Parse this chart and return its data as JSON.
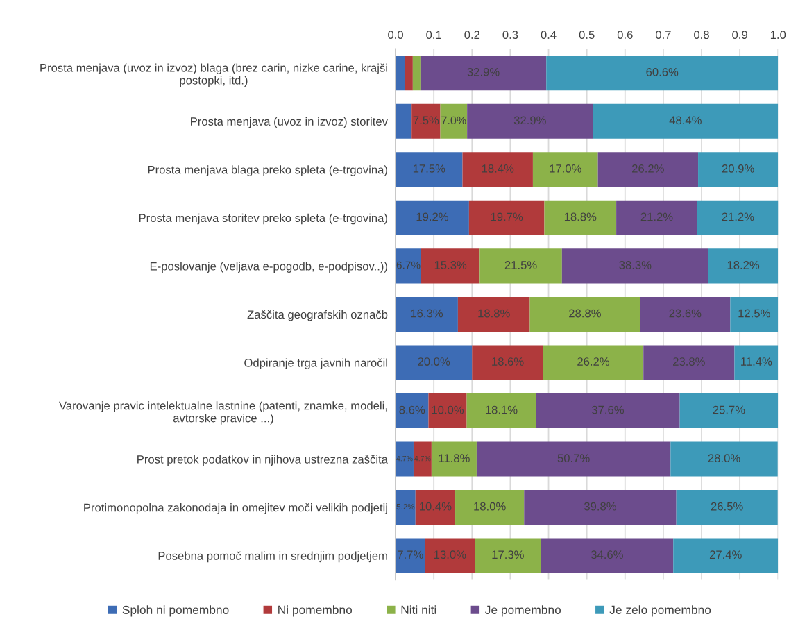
{
  "chart_data": {
    "type": "bar",
    "orientation": "horizontal",
    "stacked": true,
    "categories": [
      "Prosta menjava (uvoz in izvoz) blaga (brez carin, nizke carine, krajši\npostopki, itd.)",
      "Prosta menjava (uvoz in izvoz) storitev",
      "Prosta menjava blaga preko spleta (e-trgovina)",
      "Prosta menjava storitev preko spleta (e-trgovina)",
      "E-poslovanje (veljava e-pogodb, e-podpisov..))",
      "Zaščita geografskih označb",
      "Odpiranje trga javnih naročil",
      "Varovanje pravic intelektualne lastnine (patenti, znamke, modeli,\navtorske pravice ...)",
      "Prost pretok podatkov in njihova ustrezna zaščita",
      "Protimonopolna zakonodaja in omejitev moči velikih podjetij",
      "Posebna pomoč malim in srednjim podjetjem"
    ],
    "series": [
      {
        "name": "Sploh ni pomembno",
        "color": "#3d6cb5",
        "values": [
          0.025,
          0.042,
          0.175,
          0.192,
          0.067,
          0.163,
          0.2,
          0.086,
          0.047,
          0.052,
          0.077
        ],
        "value_labels": [
          null,
          null,
          "17.5%",
          "19.2%",
          "6.7%",
          "16.3%",
          "20.0%",
          "8.6%",
          "4.7%",
          "5.2%",
          "7.7%"
        ]
      },
      {
        "name": "Ni pomembno",
        "color": "#b13a3b",
        "values": [
          0.02,
          0.075,
          0.184,
          0.197,
          0.153,
          0.188,
          0.186,
          0.1,
          0.047,
          0.104,
          0.13
        ],
        "value_labels": [
          null,
          "7.5%",
          "18.4%",
          "19.7%",
          "15.3%",
          "18.8%",
          "18.6%",
          "10.0%",
          "4.7%",
          "10.4%",
          "13.0%"
        ]
      },
      {
        "name": "Niti niti",
        "color": "#8cb249",
        "values": [
          0.02,
          0.07,
          0.17,
          0.188,
          0.215,
          0.288,
          0.262,
          0.181,
          0.118,
          0.18,
          0.173
        ],
        "value_labels": [
          null,
          "7.0%",
          "17.0%",
          "18.8%",
          "21.5%",
          "28.8%",
          "26.2%",
          "18.1%",
          "11.8%",
          "18.0%",
          "17.3%"
        ]
      },
      {
        "name": "Je pomembno",
        "color": "#6c4c8d",
        "values": [
          0.329,
          0.329,
          0.262,
          0.212,
          0.383,
          0.236,
          0.238,
          0.376,
          0.507,
          0.398,
          0.346
        ],
        "value_labels": [
          "32.9%",
          "32.9%",
          "26.2%",
          "21.2%",
          "38.3%",
          "23.6%",
          "23.8%",
          "37.6%",
          "50.7%",
          "39.8%",
          "34.6%"
        ]
      },
      {
        "name": "Je zelo pomembno",
        "color": "#3d9ab9",
        "values": [
          0.606,
          0.484,
          0.209,
          0.212,
          0.182,
          0.125,
          0.114,
          0.257,
          0.28,
          0.265,
          0.274
        ],
        "value_labels": [
          "60.6%",
          "48.4%",
          "20.9%",
          "21.2%",
          "18.2%",
          "12.5%",
          "11.4%",
          "25.7%",
          "28.0%",
          "26.5%",
          "27.4%"
        ]
      }
    ],
    "xlim": [
      0,
      1
    ],
    "xticks": [
      {
        "value": 0,
        "label": "0.0"
      },
      0.1,
      0.2,
      0.3,
      0.4,
      0.5,
      0.6,
      0.7,
      0.8,
      0.9,
      {
        "value": 1,
        "label": "1.0"
      }
    ],
    "grid": "x",
    "legend": "bottom"
  }
}
